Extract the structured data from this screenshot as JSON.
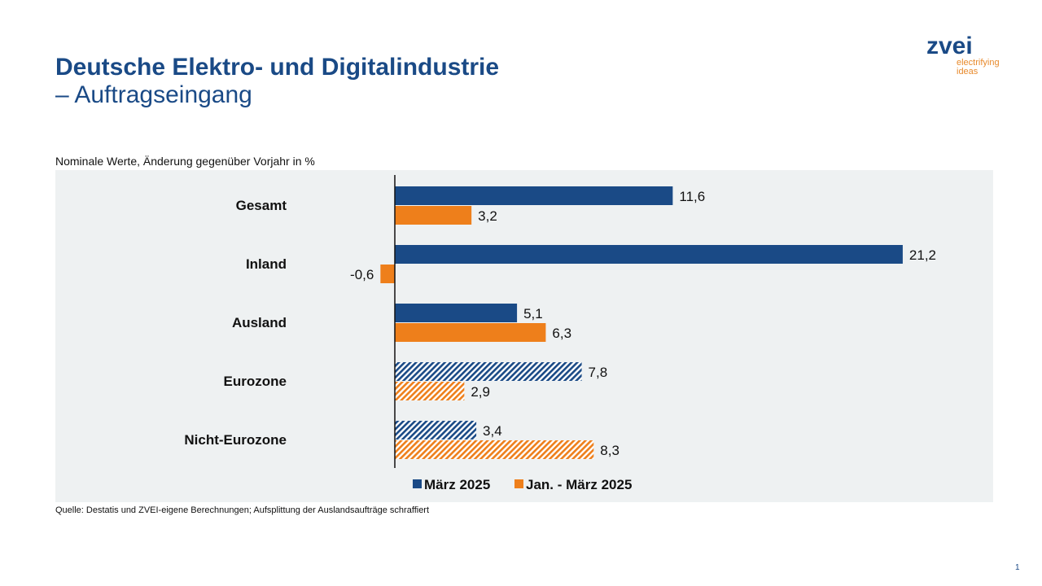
{
  "header": {
    "title": "Deutsche Elektro- und Digitalindustrie",
    "subtitle": "– Auftragseingang"
  },
  "logo": {
    "name": "zvei",
    "tagline1": "electrifying",
    "tagline2": "ideas"
  },
  "footer": {
    "source": "Quelle: Destatis und ZVEI-eigene Berechnungen; Aufsplittung der Auslandsaufträge schraffiert",
    "page": "1"
  },
  "chart_data": {
    "type": "bar",
    "orientation": "horizontal",
    "subtitle": "Nominale Werte, Änderung gegenüber Vorjahr in %",
    "categories": [
      "Gesamt",
      "Inland",
      "Ausland",
      "Eurozone",
      "Nicht-Eurozone"
    ],
    "hatched_categories": [
      "Eurozone",
      "Nicht-Eurozone"
    ],
    "series": [
      {
        "name": "März 2025",
        "color": "#1a4a86",
        "values": [
          11.6,
          21.2,
          5.1,
          7.8,
          3.4
        ],
        "labels": [
          "11,6",
          "21,2",
          "5,1",
          "7,8",
          "3,4"
        ]
      },
      {
        "name": "Jan. - März 2025",
        "color": "#ee7f1b",
        "values": [
          3.2,
          -0.6,
          6.3,
          2.9,
          8.3
        ],
        "labels": [
          "3,2",
          "-0,6",
          "6,3",
          "2,9",
          "8,3"
        ]
      }
    ],
    "legend": "bottom",
    "grid": false
  }
}
